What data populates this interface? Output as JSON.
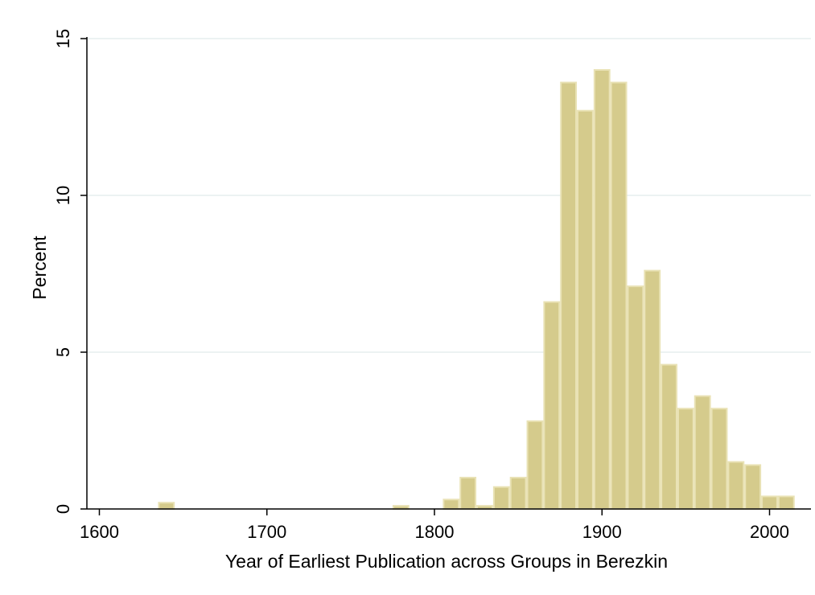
{
  "chart_data": {
    "type": "bar",
    "subtype": "histogram",
    "title": "",
    "xlabel": "Year of Earliest Publication across Groups in Berezkin",
    "ylabel": "Percent",
    "xlim": [
      1600,
      2020
    ],
    "ylim": [
      0,
      15
    ],
    "xticks": [
      "1600",
      "1700",
      "1800",
      "1900",
      "2000"
    ],
    "yticks": [
      "0",
      "5",
      "10",
      "15"
    ],
    "grid": "horizontal",
    "legend": "none",
    "bar_color": "#d5cb8c",
    "bar_edge_color": "#e9e2b5",
    "bin_width": 10,
    "bins": [
      {
        "x0": 1635,
        "x1": 1645,
        "value": 0.2
      },
      {
        "x0": 1775,
        "x1": 1785,
        "value": 0.1
      },
      {
        "x0": 1805,
        "x1": 1815,
        "value": 0.3
      },
      {
        "x0": 1815,
        "x1": 1825,
        "value": 1.0
      },
      {
        "x0": 1825,
        "x1": 1835,
        "value": 0.1
      },
      {
        "x0": 1835,
        "x1": 1845,
        "value": 0.7
      },
      {
        "x0": 1845,
        "x1": 1855,
        "value": 1.0
      },
      {
        "x0": 1855,
        "x1": 1865,
        "value": 2.8
      },
      {
        "x0": 1865,
        "x1": 1875,
        "value": 6.6
      },
      {
        "x0": 1875,
        "x1": 1885,
        "value": 13.6
      },
      {
        "x0": 1885,
        "x1": 1895,
        "value": 12.7
      },
      {
        "x0": 1895,
        "x1": 1905,
        "value": 14.0
      },
      {
        "x0": 1905,
        "x1": 1915,
        "value": 13.6
      },
      {
        "x0": 1915,
        "x1": 1925,
        "value": 7.1
      },
      {
        "x0": 1925,
        "x1": 1935,
        "value": 7.6
      },
      {
        "x0": 1935,
        "x1": 1945,
        "value": 4.6
      },
      {
        "x0": 1945,
        "x1": 1955,
        "value": 3.2
      },
      {
        "x0": 1955,
        "x1": 1965,
        "value": 3.6
      },
      {
        "x0": 1965,
        "x1": 1975,
        "value": 3.2
      },
      {
        "x0": 1975,
        "x1": 1985,
        "value": 1.5
      },
      {
        "x0": 1985,
        "x1": 1995,
        "value": 1.4
      },
      {
        "x0": 1995,
        "x1": 2005,
        "value": 0.4
      },
      {
        "x0": 2005,
        "x1": 2015,
        "value": 0.4
      }
    ]
  }
}
